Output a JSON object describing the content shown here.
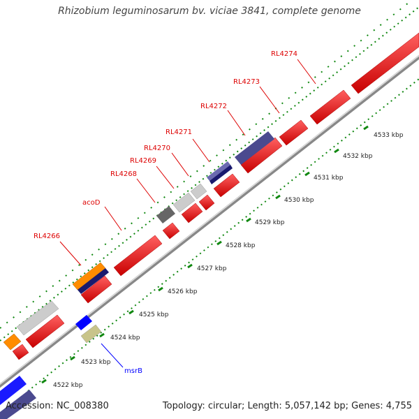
{
  "title": "Rhizobium leguminosarum bv. viciae 3841, complete genome",
  "footer": {
    "accession": "Accession: NC_008380",
    "summary": "Topology: circular; Length: 5,057,142 bp; Genes: 4,755"
  },
  "colors": {
    "cds": "#ff0000",
    "rna": "#0000ff",
    "backbone": "#999999",
    "gene_label": "#dd0000",
    "rna_label": "#0000ff",
    "orf_gray": "#cccccc",
    "orf_darkgray": "#666666",
    "orf_purple": "#4b4a8f",
    "orf_orange": "#ff8c00",
    "orf_khaki": "#c8c48a",
    "dotted_ring": "#118811"
  },
  "scale_labels": [
    "4522 kbp",
    "4523 kbp",
    "4524 kbp",
    "4525 kbp",
    "4526 kbp",
    "4527 kbp",
    "4528 kbp",
    "4529 kbp",
    "4530 kbp",
    "4531 kbp",
    "4532 kbp",
    "4533 kbp"
  ],
  "gene_labels": [
    {
      "text": "RL4266",
      "kind": "cds"
    },
    {
      "text": "acoD",
      "kind": "cds"
    },
    {
      "text": "RL4268",
      "kind": "cds"
    },
    {
      "text": "RL4269",
      "kind": "cds"
    },
    {
      "text": "RL4270",
      "kind": "cds"
    },
    {
      "text": "RL4271",
      "kind": "cds"
    },
    {
      "text": "RL4272",
      "kind": "cds"
    },
    {
      "text": "RL4273",
      "kind": "cds"
    },
    {
      "text": "RL4274",
      "kind": "cds"
    },
    {
      "text": "msrB",
      "kind": "rna"
    }
  ]
}
